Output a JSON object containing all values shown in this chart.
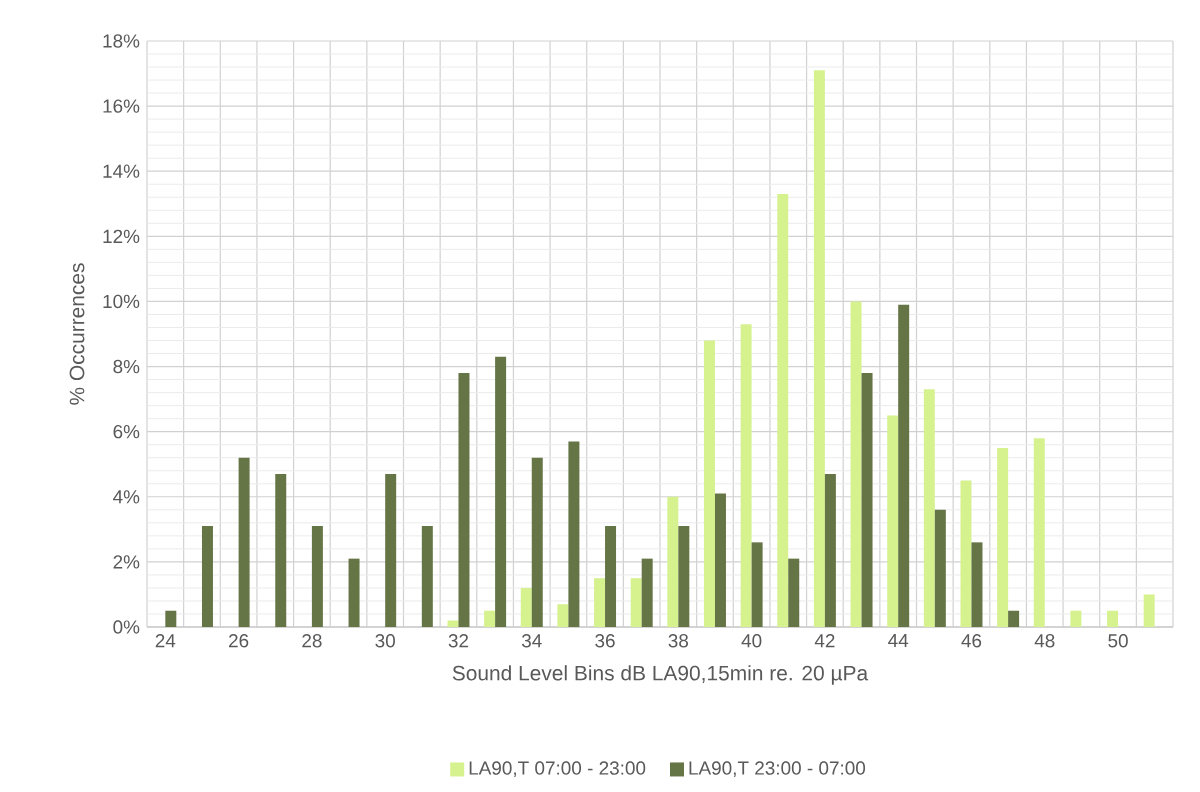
{
  "chart_data": {
    "type": "bar",
    "xlabel": "Sound Level Bins dB LA90,15min re. 20 µPa",
    "ylabel": "% Occurrences",
    "categories": [
      "24",
      null,
      "26",
      null,
      "28",
      null,
      "30",
      null,
      "32",
      null,
      "34",
      null,
      "36",
      null,
      "38",
      null,
      "40",
      null,
      "42",
      null,
      "44",
      null,
      "46",
      null,
      "48",
      null,
      "50",
      null
    ],
    "series": [
      {
        "name": "LA90,T 07:00 - 23:00",
        "color": "#d6f28f",
        "values": [
          null,
          null,
          null,
          null,
          null,
          null,
          null,
          null,
          0.2,
          0.5,
          1.2,
          0.7,
          1.5,
          1.5,
          4.0,
          8.8,
          9.3,
          13.3,
          17.1,
          10.0,
          6.5,
          7.3,
          4.5,
          5.5,
          5.8,
          0.5,
          0.5,
          1.0
        ]
      },
      {
        "name": "LA90,T 23:00 - 07:00",
        "color": "#667546",
        "values": [
          0.5,
          3.1,
          5.2,
          4.7,
          3.1,
          2.1,
          4.7,
          3.1,
          7.8,
          8.3,
          5.2,
          5.7,
          3.1,
          2.1,
          3.1,
          4.1,
          2.6,
          2.1,
          4.7,
          7.8,
          9.9,
          3.6,
          2.6,
          0.5,
          null,
          null,
          null,
          null
        ]
      }
    ],
    "ylim": [
      0,
      18
    ],
    "yticks": [
      {
        "value": 0,
        "label": "0%"
      },
      {
        "value": 2,
        "label": "2%"
      },
      {
        "value": 4,
        "label": "4%"
      },
      {
        "value": 6,
        "label": "6%"
      },
      {
        "value": 8,
        "label": "8%"
      },
      {
        "value": 10,
        "label": "10%"
      },
      {
        "value": 12,
        "label": "12%"
      },
      {
        "value": 14,
        "label": "14%"
      },
      {
        "value": 16,
        "label": "16%"
      },
      {
        "value": 18,
        "label": "18%"
      }
    ],
    "grid": true,
    "legend": "bottom"
  }
}
